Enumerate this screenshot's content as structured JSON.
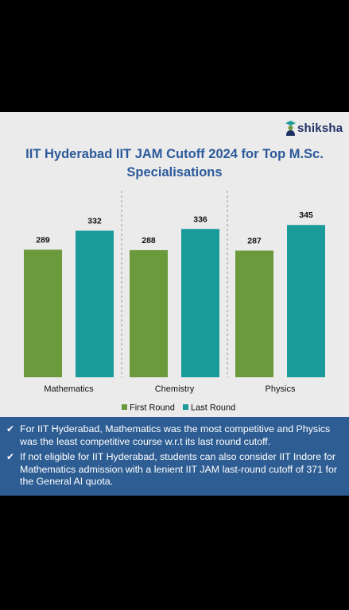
{
  "brand": {
    "logo_text": "shiksha"
  },
  "notes": [
    "For IIT Hyderabad, Mathematics was the most competitive and Physics was the least competitive course w.r.t its last round cutoff.",
    "If not eligible for IIT Hyderabad, students can also consider IIT Indore for Mathematics admission with a lenient IIT JAM last-round cutoff of 371 for the General AI quota."
  ],
  "chart_data": {
    "type": "bar",
    "title": "IIT Hyderabad IIT JAM Cutoff 2024 for Top M.Sc. Specialisations",
    "title_lines": [
      "IIT Hyderabad IIT JAM Cutoff 2024 for Top M.Sc.",
      "Specialisations"
    ],
    "categories": [
      "Mathematics",
      "Chemistry",
      "Physics"
    ],
    "series": [
      {
        "name": "First Round",
        "values": [
          289,
          288,
          287
        ],
        "color": "#6b9a3c"
      },
      {
        "name": "Last Round",
        "values": [
          332,
          336,
          345
        ],
        "color": "#1b9a9a"
      }
    ],
    "xlabel": "",
    "ylabel": "",
    "grid": false,
    "legend": "bottom-center",
    "data_labels": true,
    "category_separators": true
  }
}
